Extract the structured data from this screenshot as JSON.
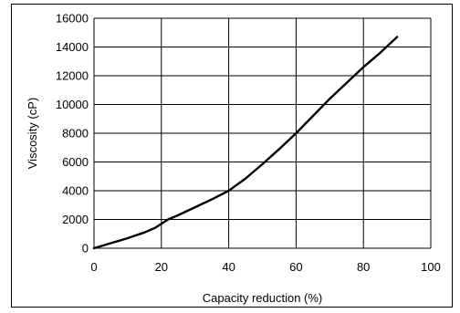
{
  "chart_data": {
    "type": "line",
    "title": "",
    "xlabel": "Capacity reduction (%)",
    "ylabel": "Viscosity (cP)",
    "xlim": [
      0,
      100
    ],
    "ylim": [
      0,
      16000
    ],
    "xticks": [
      0,
      20,
      40,
      60,
      80,
      100
    ],
    "yticks": [
      0,
      2000,
      4000,
      6000,
      8000,
      10000,
      12000,
      14000,
      16000
    ],
    "grid": true,
    "legend": "none",
    "colors": {
      "line": "#000000",
      "grid": "#000000",
      "border": "#000000"
    },
    "series": [
      {
        "values_x": [
          0,
          5,
          10,
          15,
          18,
          20,
          22,
          25,
          30,
          35,
          40,
          45,
          50,
          55,
          60,
          65,
          70,
          75,
          80,
          85,
          90
        ],
        "values_y": [
          0,
          350,
          700,
          1100,
          1400,
          1700,
          2000,
          2300,
          2850,
          3400,
          4000,
          4850,
          5850,
          6900,
          8000,
          9200,
          10400,
          11500,
          12600,
          13600,
          14700
        ]
      }
    ]
  }
}
